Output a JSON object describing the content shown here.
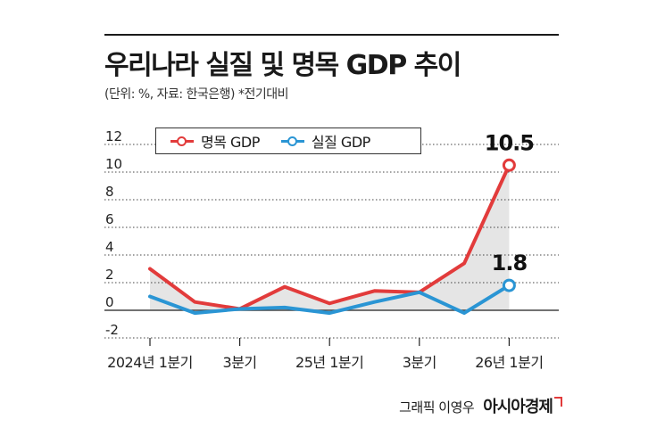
{
  "header": {
    "title": "우리나라 실질 및 명목 GDP 추이",
    "subtitle": "(단위: %, 자료: 한국은행) *전기대비"
  },
  "credit": {
    "text": "그래픽 이영우",
    "logo": "아시아경제"
  },
  "colors": {
    "nominal": "#e23b3b",
    "real": "#2a95d4",
    "shade": "#e5e5e5",
    "grid": "#444444"
  },
  "chart_data": {
    "type": "line",
    "title": "우리나라 실질 및 명목 GDP 추이",
    "ylim": [
      -2,
      12
    ],
    "yticks": [
      -2,
      0,
      2,
      4,
      6,
      8,
      10,
      12
    ],
    "grid": true,
    "legend": "top-left",
    "x_labels": [
      {
        "index": 0,
        "label": "2024년 1분기"
      },
      {
        "index": 2,
        "label": "3분기"
      },
      {
        "index": 4,
        "label": "25년 1분기"
      },
      {
        "index": 6,
        "label": "3분기"
      },
      {
        "index": 8,
        "label": "26년 1분기"
      }
    ],
    "series": [
      {
        "name": "명목 GDP",
        "color": "#e23b3b",
        "values": [
          3.0,
          0.6,
          0.1,
          1.7,
          0.5,
          1.4,
          1.3,
          3.4,
          10.5
        ],
        "end_label": "10.5"
      },
      {
        "name": "실질 GDP",
        "color": "#2a95d4",
        "values": [
          1.0,
          -0.2,
          0.1,
          0.2,
          -0.2,
          0.6,
          1.3,
          -0.2,
          1.8
        ],
        "end_label": "1.8"
      }
    ]
  }
}
